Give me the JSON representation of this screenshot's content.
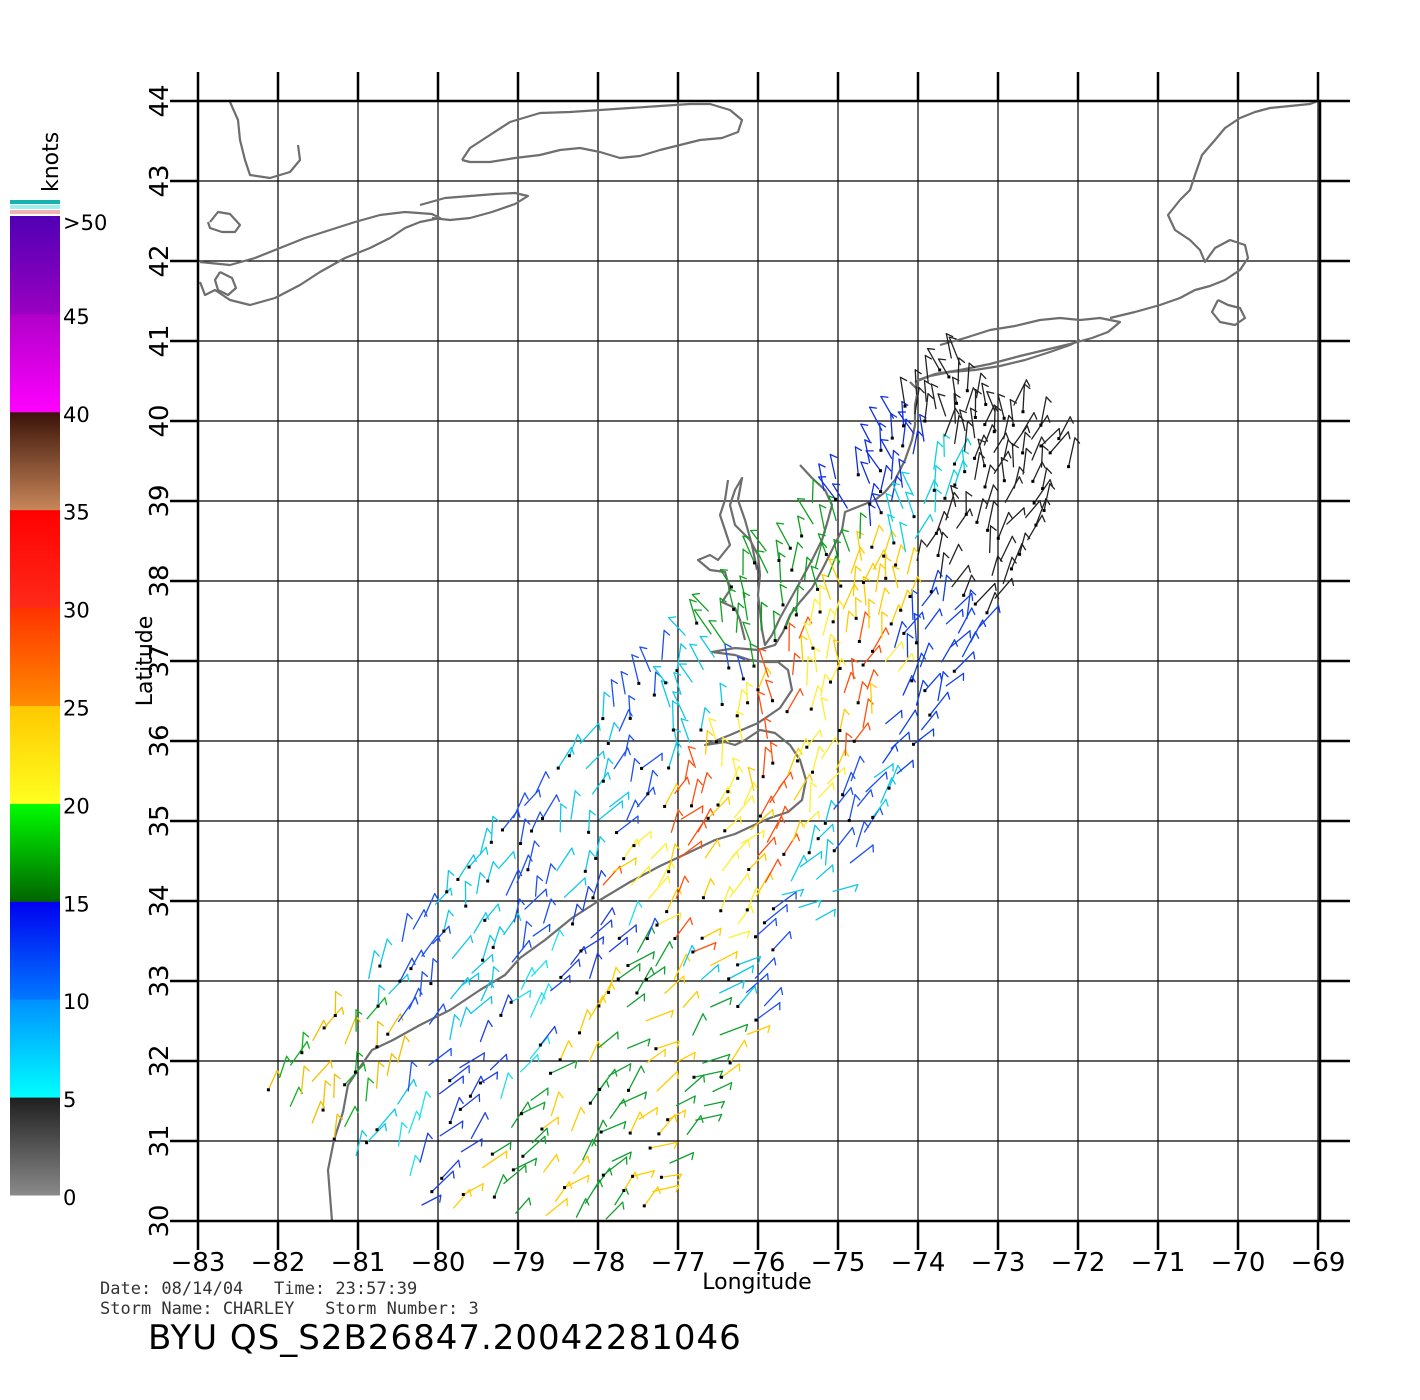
{
  "map": {
    "x_axis_label": "Longitude",
    "y_axis_label": "Latitude",
    "lon_ticks": [
      "−83",
      "−82",
      "−81",
      "−80",
      "−79",
      "−78",
      "−77",
      "−76",
      "−75",
      "−74",
      "−73",
      "−72",
      "−71",
      "−70",
      "−69"
    ],
    "lat_ticks": [
      "30",
      "31",
      "32",
      "33",
      "34",
      "35",
      "36",
      "37",
      "38",
      "39",
      "40",
      "41",
      "42",
      "43",
      "44"
    ],
    "lon_range": [
      -83,
      -69
    ],
    "lat_range": [
      30,
      44
    ],
    "grid": true,
    "coastline_color": "#6e6e6e"
  },
  "colorbar": {
    "unit_label": "knots",
    "tick_labels": [
      "0",
      "5",
      "10",
      "15",
      "20",
      "25",
      "30",
      "35",
      "40",
      "45",
      ">50"
    ],
    "bands": [
      {
        "from": 0,
        "to": 5,
        "colors": [
          "#8a8a8a",
          "#1e1e1e"
        ]
      },
      {
        "from": 5,
        "to": 10,
        "colors": [
          "#00ffff",
          "#0090ff"
        ]
      },
      {
        "from": 10,
        "to": 15,
        "colors": [
          "#0078ff",
          "#0000f0"
        ]
      },
      {
        "from": 15,
        "to": 20,
        "colors": [
          "#006400",
          "#00ff00"
        ]
      },
      {
        "from": 20,
        "to": 25,
        "colors": [
          "#ffff20",
          "#ffc800"
        ]
      },
      {
        "from": 25,
        "to": 30,
        "colors": [
          "#ff8c00",
          "#ff3200"
        ]
      },
      {
        "from": 30,
        "to": 35,
        "colors": [
          "#ff2a1a",
          "#ff0000"
        ]
      },
      {
        "from": 35,
        "to": 40,
        "colors": [
          "#c8875a",
          "#3a1208"
        ]
      },
      {
        "from": 40,
        "to": 45,
        "colors": [
          "#ff00ff",
          "#b000c8"
        ]
      },
      {
        "from": 45,
        "to": 50,
        "colors": [
          "#9a00c0",
          "#5000b4"
        ]
      }
    ]
  },
  "metadata": {
    "date_line": "Date: 08/14/04   Time: 23:57:39",
    "storm_line": "Storm Name: CHARLEY   Storm Number: 3",
    "product_id": "BYU QS_S2B26847.20042281046"
  }
}
